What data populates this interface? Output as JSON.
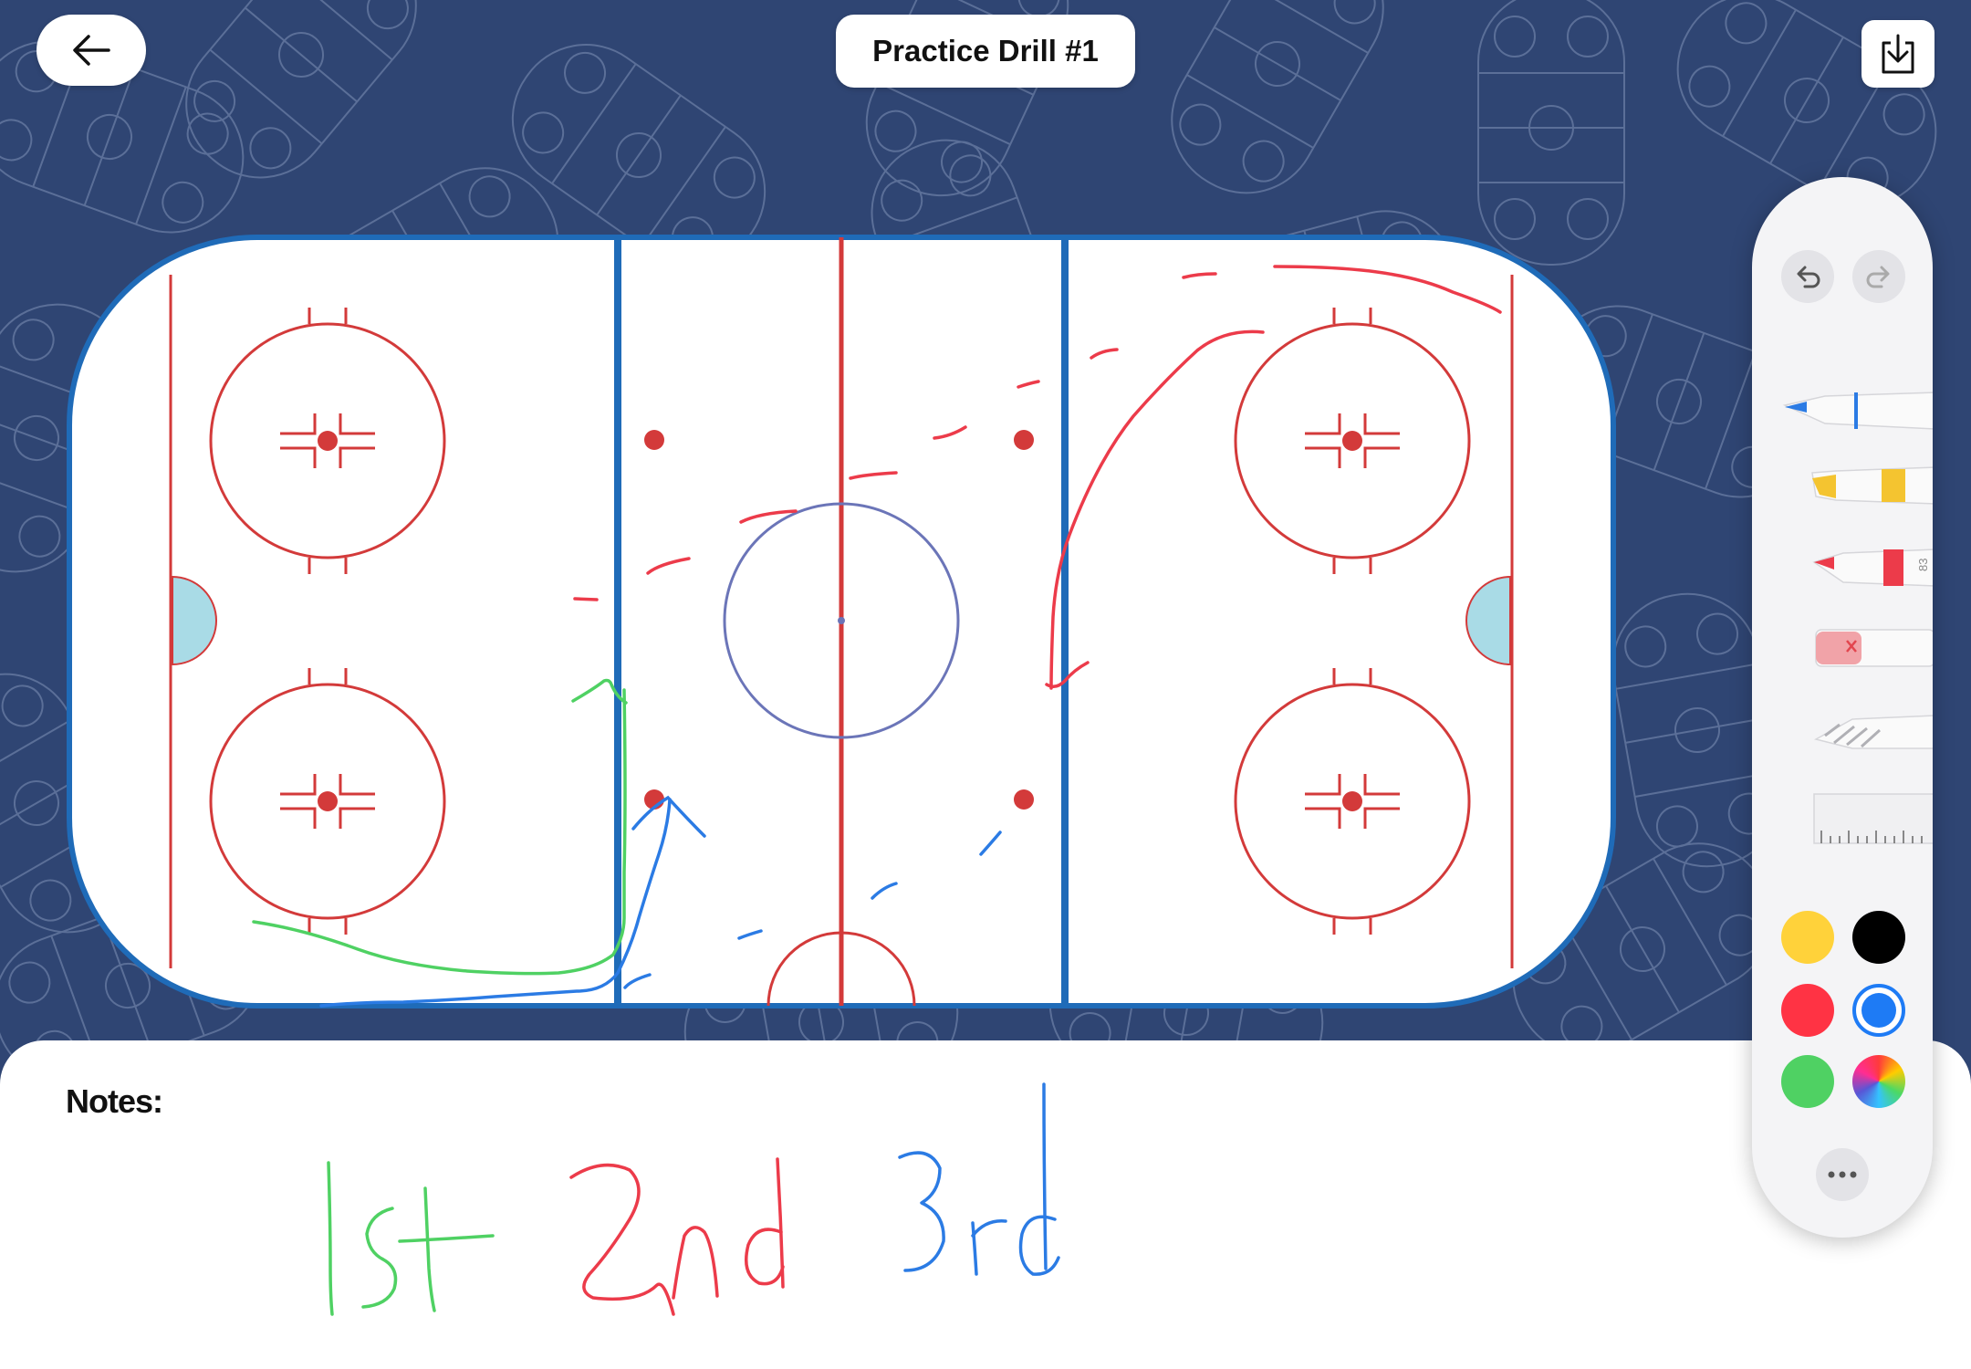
{
  "header": {
    "title": "Practice Drill #1"
  },
  "icons": {
    "back": "arrow-left-icon",
    "export": "download-tray-icon",
    "undo": "undo-icon",
    "redo": "redo-icon",
    "more": "ellipsis-icon"
  },
  "notes": {
    "label": "Notes:",
    "handwriting": [
      "1st",
      "2nd",
      "3rd"
    ]
  },
  "tools": {
    "items": [
      "pen",
      "highlighter",
      "marker",
      "eraser",
      "lasso",
      "ruler"
    ],
    "marker_width_label": "83"
  },
  "colors": {
    "background": "#2f4573",
    "rink_boards": "#1f6bb8",
    "rink_red": "#d33a3a",
    "center_circle": "#6b75b8",
    "crease": "#a9dbe6",
    "ink_red": "#ec3b4a",
    "ink_blue": "#2b7be4",
    "ink_green": "#4fd163",
    "swatches": [
      "#ffd23a",
      "#000000",
      "#ff3344",
      "#1e7bf5",
      "#4fd163",
      "spectrum"
    ],
    "selected_swatch": "#1e7bf5"
  }
}
